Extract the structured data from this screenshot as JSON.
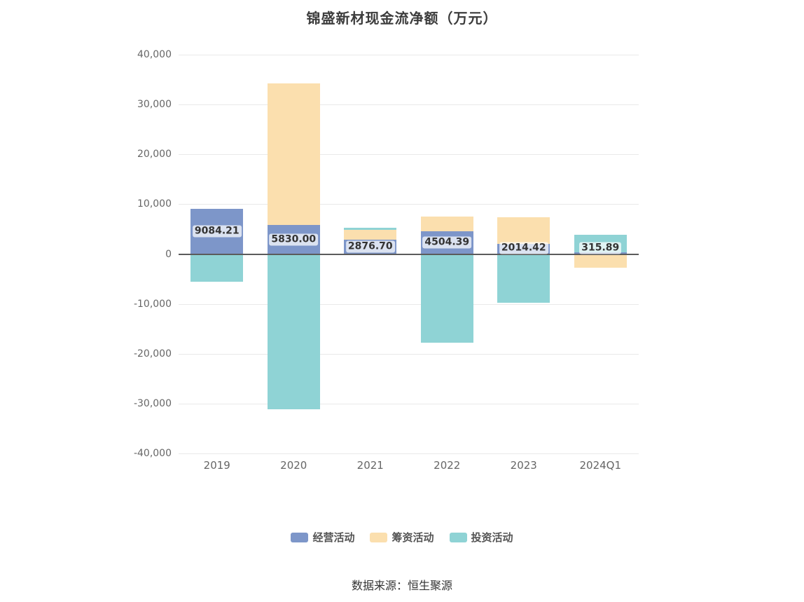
{
  "title": "锦盛新材现金流净额（万元）",
  "footer": {
    "source": "数据来源：恒生聚源"
  },
  "chart_data": {
    "type": "bar",
    "stacked": true,
    "title": "锦盛新材现金流净额（万元）",
    "categories": [
      "2019",
      "2020",
      "2021",
      "2022",
      "2023",
      "2024Q1"
    ],
    "series": [
      {
        "name": "经营活动",
        "color": "#7d96c9",
        "values": [
          9084.21,
          5830.0,
          2876.7,
          4504.39,
          2014.42,
          315.89
        ]
      },
      {
        "name": "筹资活动",
        "color": "#fbdfae",
        "values": [
          0,
          28370,
          1950,
          3000,
          5400,
          -2700
        ]
      },
      {
        "name": "投资活动",
        "color": "#8fd3d5",
        "values": [
          -5500,
          -31200,
          500,
          -17800,
          -9800,
          3500
        ]
      }
    ],
    "bar_labels": [
      "9084.21",
      "5830.00",
      "2876.70",
      "4504.39",
      "2014.42",
      "315.89"
    ],
    "bar_labels_series": "经营活动",
    "ylim": [
      -40000,
      40000
    ],
    "ytick_step": 10000,
    "grid": true,
    "legend_position": "bottom",
    "colors": {
      "grid": "#e9e9e9",
      "zero_line": "#5b5b5b",
      "axis_text": "#666666",
      "title_text": "#3c3c3c"
    }
  }
}
